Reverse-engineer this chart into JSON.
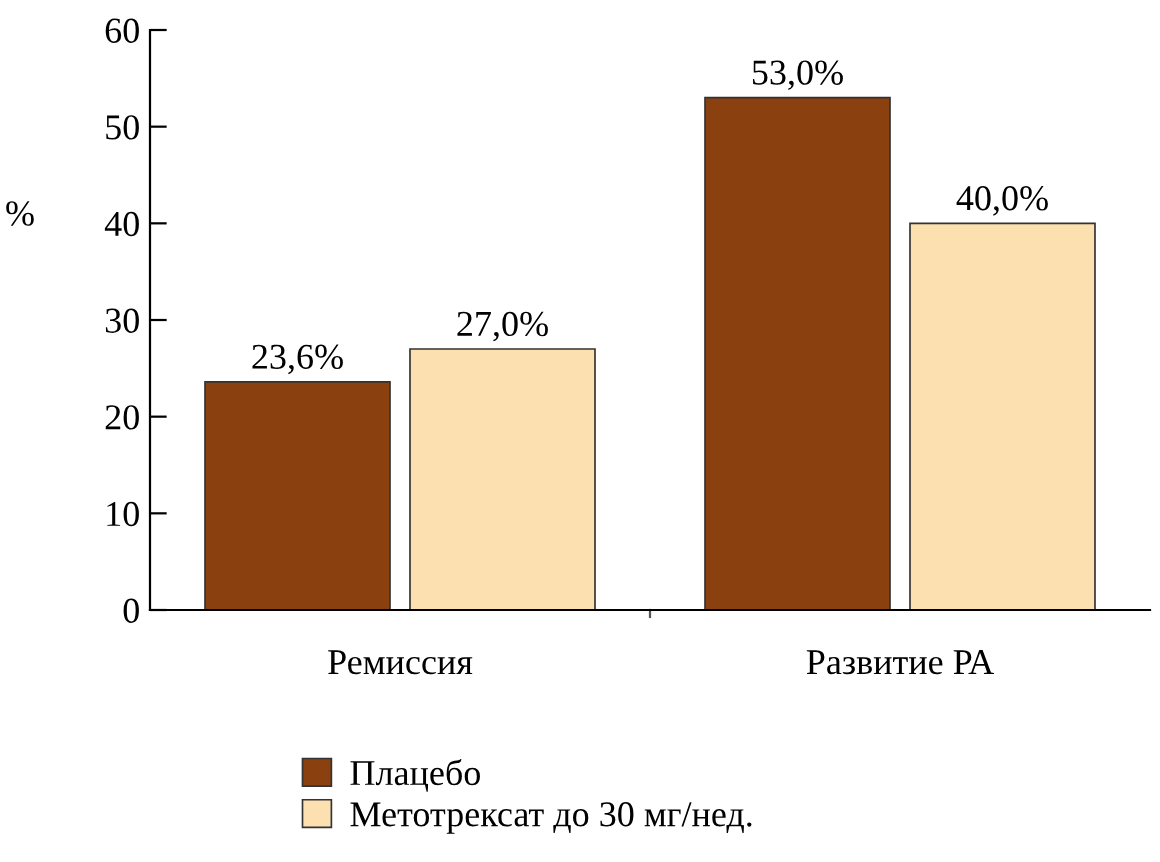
{
  "chart_data": {
    "type": "bar",
    "ylabel": "%",
    "categories": [
      "Ремиссия",
      "Развитие РА"
    ],
    "series": [
      {
        "name": "Плацебо",
        "color": "#8b400f",
        "values": [
          23.6,
          53.0
        ],
        "value_labels": [
          "23,6%",
          "53,0%"
        ]
      },
      {
        "name": "Метотрексат до 30 мг/нед.",
        "color": "#fde0b0",
        "values": [
          27.0,
          40.0
        ],
        "value_labels": [
          "27,0%",
          "40,0%"
        ]
      }
    ],
    "ylim": [
      0,
      60
    ],
    "yticks": [
      0,
      10,
      20,
      30,
      40,
      50,
      60
    ],
    "grid": false,
    "legend": "bottom"
  }
}
